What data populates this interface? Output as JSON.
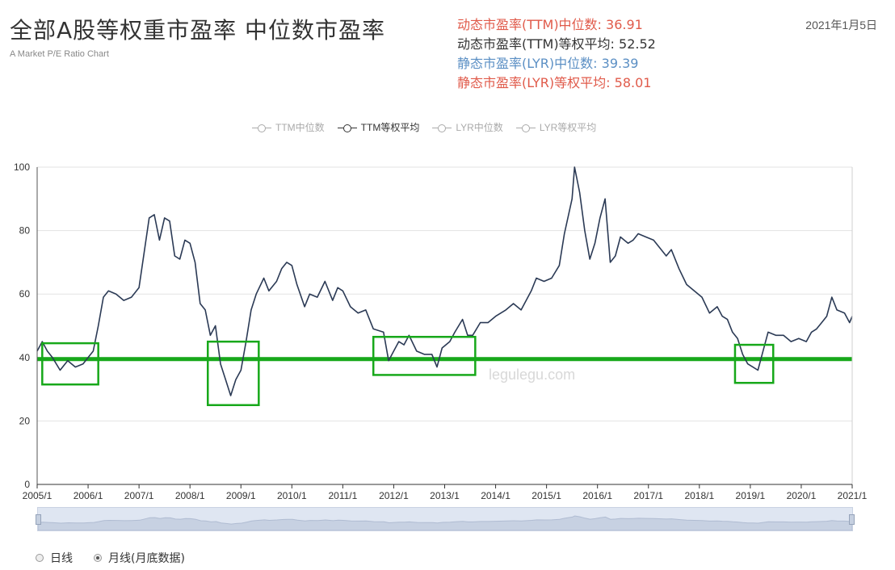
{
  "header": {
    "title": "全部A股等权重市盈率 中位数市盈率",
    "subtitle": "A Market P/E Ratio Chart",
    "date": "2021年1月5日"
  },
  "stats": [
    {
      "text": "动态市盈率(TTM)中位数: 36.91",
      "color": "#e05a4a"
    },
    {
      "text": "动态市盈率(TTM)等权平均: 52.52",
      "color": "#333333"
    },
    {
      "text": "静态市盈率(LYR)中位数: 39.39",
      "color": "#5b8fc4"
    },
    {
      "text": "静态市盈率(LYR)等权平均: 58.01",
      "color": "#e05a4a"
    }
  ],
  "legend": [
    {
      "label": "TTM中位数",
      "active": false
    },
    {
      "label": "TTM等权平均",
      "active": true
    },
    {
      "label": "LYR中位数",
      "active": false
    },
    {
      "label": "LYR等权平均",
      "active": false
    }
  ],
  "watermark": "legulegu.com",
  "controls": {
    "daily_label": "日线",
    "monthly_label": "月线(月底数据)",
    "selected": "monthly"
  },
  "chart_data": {
    "type": "line",
    "xlabel": "",
    "ylabel": "",
    "x_ticks": [
      "2005/1",
      "2006/1",
      "2007/1",
      "2008/1",
      "2009/1",
      "2010/1",
      "2011/1",
      "2012/1",
      "2013/1",
      "2014/1",
      "2015/1",
      "2016/1",
      "2017/1",
      "2018/1",
      "2019/1",
      "2020/1",
      "2021/1"
    ],
    "y_ticks": [
      0,
      20,
      40,
      60,
      80,
      100
    ],
    "ylim": [
      0,
      100
    ],
    "grid": true,
    "line_color": "#2b3a55",
    "reference_line": {
      "value": 39.5,
      "color": "#17a81a"
    },
    "highlight_color": "#17a81a",
    "highlight_boxes": [
      {
        "x0": 2005.1,
        "x1": 2006.2,
        "y0": 31.5,
        "y1": 44.5
      },
      {
        "x0": 2008.35,
        "x1": 2009.35,
        "y0": 25,
        "y1": 45
      },
      {
        "x0": 2011.6,
        "x1": 2013.6,
        "y0": 34.5,
        "y1": 46.5
      },
      {
        "x0": 2018.7,
        "x1": 2019.45,
        "y0": 32,
        "y1": 44
      }
    ],
    "series": [
      {
        "name": "TTM等权平均",
        "points": [
          [
            2005.0,
            42
          ],
          [
            2005.1,
            45
          ],
          [
            2005.2,
            42
          ],
          [
            2005.3,
            40
          ],
          [
            2005.45,
            36
          ],
          [
            2005.6,
            39
          ],
          [
            2005.75,
            37
          ],
          [
            2005.9,
            38
          ],
          [
            2006.0,
            40
          ],
          [
            2006.1,
            42
          ],
          [
            2006.2,
            50
          ],
          [
            2006.3,
            59
          ],
          [
            2006.4,
            61
          ],
          [
            2006.55,
            60
          ],
          [
            2006.7,
            58
          ],
          [
            2006.85,
            59
          ],
          [
            2007.0,
            62
          ],
          [
            2007.1,
            73
          ],
          [
            2007.2,
            84
          ],
          [
            2007.3,
            85
          ],
          [
            2007.4,
            77
          ],
          [
            2007.5,
            84
          ],
          [
            2007.6,
            83
          ],
          [
            2007.7,
            72
          ],
          [
            2007.8,
            71
          ],
          [
            2007.9,
            77
          ],
          [
            2008.0,
            76
          ],
          [
            2008.1,
            70
          ],
          [
            2008.2,
            57
          ],
          [
            2008.3,
            55
          ],
          [
            2008.4,
            47
          ],
          [
            2008.5,
            50
          ],
          [
            2008.6,
            38
          ],
          [
            2008.7,
            33
          ],
          [
            2008.8,
            28
          ],
          [
            2008.9,
            33
          ],
          [
            2009.0,
            36
          ],
          [
            2009.1,
            45
          ],
          [
            2009.2,
            55
          ],
          [
            2009.3,
            60
          ],
          [
            2009.45,
            65
          ],
          [
            2009.55,
            61
          ],
          [
            2009.7,
            64
          ],
          [
            2009.8,
            68
          ],
          [
            2009.9,
            70
          ],
          [
            2010.0,
            69
          ],
          [
            2010.1,
            63
          ],
          [
            2010.25,
            56
          ],
          [
            2010.35,
            60
          ],
          [
            2010.5,
            59
          ],
          [
            2010.65,
            64
          ],
          [
            2010.8,
            58
          ],
          [
            2010.9,
            62
          ],
          [
            2011.0,
            61
          ],
          [
            2011.15,
            56
          ],
          [
            2011.3,
            54
          ],
          [
            2011.45,
            55
          ],
          [
            2011.6,
            49
          ],
          [
            2011.8,
            48
          ],
          [
            2011.9,
            39
          ],
          [
            2012.0,
            42
          ],
          [
            2012.1,
            45
          ],
          [
            2012.2,
            44
          ],
          [
            2012.3,
            47
          ],
          [
            2012.45,
            42
          ],
          [
            2012.6,
            41
          ],
          [
            2012.75,
            41
          ],
          [
            2012.85,
            37
          ],
          [
            2012.95,
            43
          ],
          [
            2013.1,
            45
          ],
          [
            2013.2,
            48
          ],
          [
            2013.35,
            52
          ],
          [
            2013.45,
            47
          ],
          [
            2013.55,
            47
          ],
          [
            2013.7,
            51
          ],
          [
            2013.85,
            51
          ],
          [
            2014.0,
            53
          ],
          [
            2014.2,
            55
          ],
          [
            2014.35,
            57
          ],
          [
            2014.5,
            55
          ],
          [
            2014.7,
            61
          ],
          [
            2014.8,
            65
          ],
          [
            2014.95,
            64
          ],
          [
            2015.1,
            65
          ],
          [
            2015.25,
            69
          ],
          [
            2015.35,
            79
          ],
          [
            2015.5,
            90
          ],
          [
            2015.55,
            100
          ],
          [
            2015.65,
            92
          ],
          [
            2015.75,
            80
          ],
          [
            2015.85,
            71
          ],
          [
            2015.95,
            76
          ],
          [
            2016.05,
            84
          ],
          [
            2016.15,
            90
          ],
          [
            2016.25,
            70
          ],
          [
            2016.35,
            72
          ],
          [
            2016.45,
            78
          ],
          [
            2016.6,
            76
          ],
          [
            2016.7,
            77
          ],
          [
            2016.8,
            79
          ],
          [
            2016.95,
            78
          ],
          [
            2017.1,
            77
          ],
          [
            2017.2,
            75
          ],
          [
            2017.35,
            72
          ],
          [
            2017.45,
            74
          ],
          [
            2017.6,
            68
          ],
          [
            2017.75,
            63
          ],
          [
            2017.9,
            61
          ],
          [
            2018.05,
            59
          ],
          [
            2018.2,
            54
          ],
          [
            2018.35,
            56
          ],
          [
            2018.45,
            53
          ],
          [
            2018.55,
            52
          ],
          [
            2018.65,
            48
          ],
          [
            2018.75,
            46
          ],
          [
            2018.85,
            41
          ],
          [
            2018.95,
            38
          ],
          [
            2019.05,
            37
          ],
          [
            2019.15,
            36
          ],
          [
            2019.25,
            42
          ],
          [
            2019.35,
            48
          ],
          [
            2019.5,
            47
          ],
          [
            2019.65,
            47
          ],
          [
            2019.8,
            45
          ],
          [
            2019.95,
            46
          ],
          [
            2020.1,
            45
          ],
          [
            2020.2,
            48
          ],
          [
            2020.3,
            49
          ],
          [
            2020.4,
            51
          ],
          [
            2020.5,
            53
          ],
          [
            2020.6,
            59
          ],
          [
            2020.7,
            55
          ],
          [
            2020.85,
            54
          ],
          [
            2020.95,
            51
          ],
          [
            2021.0,
            53
          ]
        ]
      }
    ]
  }
}
